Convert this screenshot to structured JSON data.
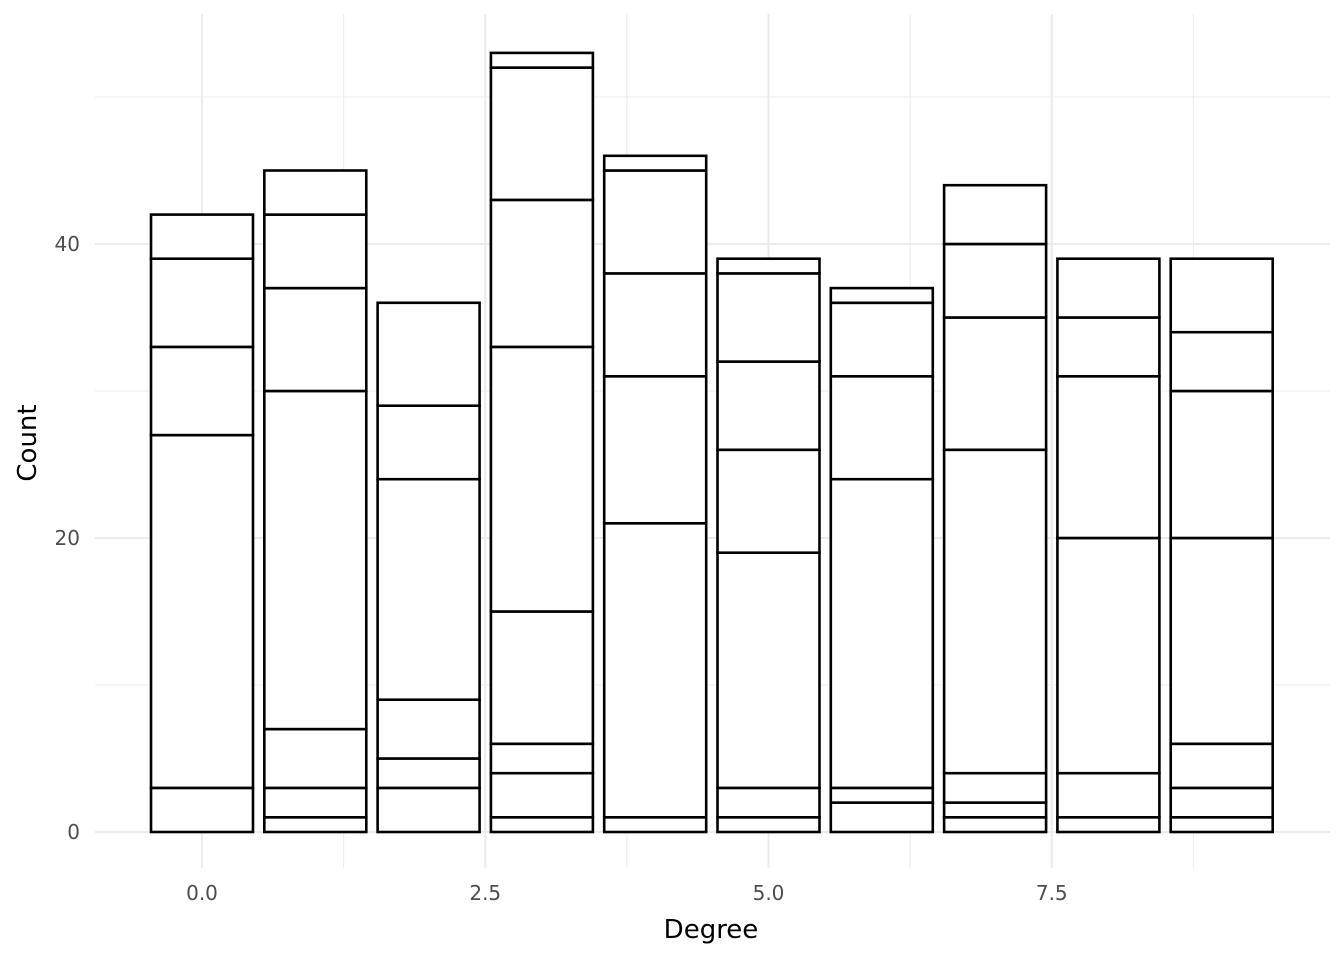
{
  "chart_data": {
    "type": "bar",
    "stacked": true,
    "title": "",
    "xlabel": "Degree",
    "ylabel": "Count",
    "xlim": [
      -0.5,
      9.5
    ],
    "ylim": [
      0,
      55
    ],
    "x_ticks": [
      0.0,
      2.5,
      5.0,
      7.5
    ],
    "x_tick_labels": [
      "0.0",
      "2.5",
      "5.0",
      "7.5"
    ],
    "y_ticks": [
      0,
      20,
      40
    ],
    "y_tick_labels": [
      "0",
      "20",
      "40"
    ],
    "grid": true,
    "bar_fill": "#ffffff",
    "bar_stroke": "#000000",
    "bars": [
      {
        "x": 0,
        "cumulative": [
          3,
          27,
          33,
          39,
          42
        ]
      },
      {
        "x": 1,
        "cumulative": [
          1,
          3,
          7,
          30,
          37,
          42,
          45
        ]
      },
      {
        "x": 2,
        "cumulative": [
          3,
          5,
          9,
          24,
          29,
          36
        ]
      },
      {
        "x": 3,
        "cumulative": [
          1,
          4,
          6,
          15,
          33,
          43,
          52,
          53
        ]
      },
      {
        "x": 4,
        "cumulative": [
          1,
          21,
          31,
          38,
          45,
          46
        ]
      },
      {
        "x": 5,
        "cumulative": [
          1,
          3,
          19,
          26,
          32,
          38,
          39
        ]
      },
      {
        "x": 6,
        "cumulative": [
          2,
          3,
          24,
          31,
          36,
          37
        ]
      },
      {
        "x": 7,
        "cumulative": [
          1,
          2,
          4,
          26,
          35,
          40,
          44
        ]
      },
      {
        "x": 8,
        "cumulative": [
          1,
          4,
          20,
          31,
          35,
          39
        ]
      },
      {
        "x": 9,
        "cumulative": [
          1,
          3,
          6,
          20,
          30,
          34,
          39
        ]
      }
    ]
  }
}
